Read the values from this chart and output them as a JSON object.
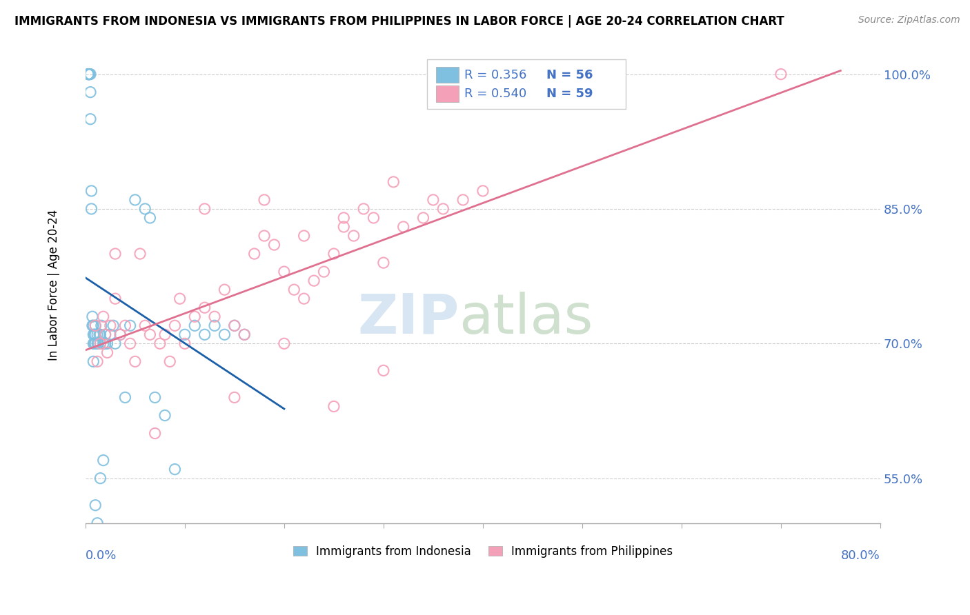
{
  "title": "IMMIGRANTS FROM INDONESIA VS IMMIGRANTS FROM PHILIPPINES IN LABOR FORCE | AGE 20-24 CORRELATION CHART",
  "source": "Source: ZipAtlas.com",
  "ylabel_ticks": [
    "55.0%",
    "70.0%",
    "85.0%",
    "100.0%"
  ],
  "ylabel_values": [
    0.55,
    0.7,
    0.85,
    1.0
  ],
  "xlim": [
    0.0,
    0.8
  ],
  "ylim": [
    0.5,
    1.03
  ],
  "legend_indonesia": {
    "R": 0.356,
    "N": 56
  },
  "legend_philippines": {
    "R": 0.54,
    "N": 59
  },
  "color_indonesia": "#7fbfdf",
  "color_philippines": "#f4a0b8",
  "color_trend_indonesia": "#1a5fa8",
  "color_trend_philippines": "#e07090",
  "indo_x": [
    0.003,
    0.003,
    0.003,
    0.003,
    0.004,
    0.004,
    0.005,
    0.005,
    0.005,
    0.006,
    0.006,
    0.007,
    0.007,
    0.008,
    0.008,
    0.008,
    0.009,
    0.009,
    0.01,
    0.01,
    0.01,
    0.012,
    0.012,
    0.013,
    0.014,
    0.015,
    0.015,
    0.016,
    0.018,
    0.02,
    0.02,
    0.022,
    0.025,
    0.028,
    0.03,
    0.035,
    0.04,
    0.045,
    0.05,
    0.06,
    0.065,
    0.07,
    0.08,
    0.09,
    0.1,
    0.11,
    0.12,
    0.13,
    0.14,
    0.15,
    0.16,
    0.01,
    0.012,
    0.015,
    0.018,
    0.008
  ],
  "indo_y": [
    1.0,
    1.0,
    1.0,
    1.0,
    1.0,
    1.0,
    0.95,
    0.98,
    1.0,
    0.85,
    0.87,
    0.72,
    0.73,
    0.7,
    0.71,
    0.72,
    0.7,
    0.71,
    0.7,
    0.71,
    0.72,
    0.7,
    0.71,
    0.7,
    0.71,
    0.7,
    0.71,
    0.72,
    0.7,
    0.71,
    0.7,
    0.7,
    0.71,
    0.72,
    0.7,
    0.71,
    0.64,
    0.72,
    0.86,
    0.85,
    0.84,
    0.64,
    0.62,
    0.56,
    0.71,
    0.72,
    0.71,
    0.72,
    0.71,
    0.72,
    0.71,
    0.52,
    0.5,
    0.55,
    0.57,
    0.68
  ],
  "phil_x": [
    0.01,
    0.012,
    0.015,
    0.018,
    0.02,
    0.022,
    0.025,
    0.03,
    0.03,
    0.035,
    0.04,
    0.045,
    0.05,
    0.055,
    0.06,
    0.065,
    0.07,
    0.075,
    0.08,
    0.085,
    0.09,
    0.095,
    0.1,
    0.11,
    0.12,
    0.13,
    0.14,
    0.15,
    0.16,
    0.17,
    0.18,
    0.19,
    0.2,
    0.21,
    0.22,
    0.23,
    0.24,
    0.25,
    0.26,
    0.27,
    0.28,
    0.29,
    0.3,
    0.32,
    0.34,
    0.36,
    0.38,
    0.4,
    0.15,
    0.2,
    0.25,
    0.3,
    0.12,
    0.18,
    0.22,
    0.26,
    0.31,
    0.35,
    0.7
  ],
  "phil_y": [
    0.72,
    0.68,
    0.7,
    0.73,
    0.71,
    0.69,
    0.72,
    0.75,
    0.8,
    0.71,
    0.72,
    0.7,
    0.68,
    0.8,
    0.72,
    0.71,
    0.6,
    0.7,
    0.71,
    0.68,
    0.72,
    0.75,
    0.7,
    0.73,
    0.74,
    0.73,
    0.76,
    0.72,
    0.71,
    0.8,
    0.82,
    0.81,
    0.78,
    0.76,
    0.75,
    0.77,
    0.78,
    0.8,
    0.83,
    0.82,
    0.85,
    0.84,
    0.79,
    0.83,
    0.84,
    0.85,
    0.86,
    0.87,
    0.64,
    0.7,
    0.63,
    0.67,
    0.85,
    0.86,
    0.82,
    0.84,
    0.88,
    0.86,
    1.0
  ]
}
